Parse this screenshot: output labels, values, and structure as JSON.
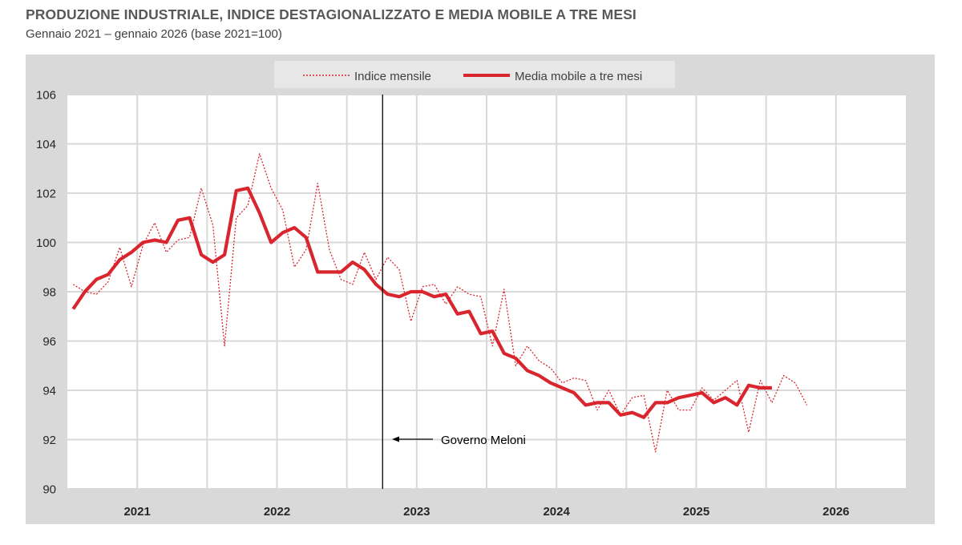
{
  "header": {
    "title": "PRODUZIONE INDUSTRIALE, INDICE DESTAGIONALIZZATO E MEDIA MOBILE A TRE MESI",
    "subtitle": "Gennaio 2021 – gennaio 2026 (base 2021=100)"
  },
  "chart_data": {
    "type": "line",
    "title": "PRODUZIONE INDUSTRIALE, INDICE DESTAGIONALIZZATO E MEDIA MOBILE A TRE MESI",
    "subtitle": "Gennaio 2021 – gennaio 2026 (base 2021=100)",
    "xlabel": "",
    "ylabel": "",
    "ylim": [
      90,
      106
    ],
    "yticks": [
      "90",
      "92",
      "94",
      "96",
      "98",
      "100",
      "102",
      "104",
      "106"
    ],
    "years": [
      "2021",
      "2022",
      "2023",
      "2024",
      "2025",
      "2026"
    ],
    "x_unit": "month index (0 = gennaio 2021)",
    "xlim": [
      0,
      72
    ],
    "grid": true,
    "legend_position": "top",
    "series": [
      {
        "name": "Indice mensile",
        "style": "dotted",
        "color": "#d9262e",
        "values": [
          98.3,
          98.0,
          97.9,
          98.4,
          99.8,
          98.2,
          99.9,
          100.8,
          99.6,
          100.1,
          100.2,
          102.2,
          100.7,
          95.8,
          101.0,
          101.5,
          103.6,
          102.2,
          101.3,
          99.0,
          99.7,
          102.4,
          99.7,
          98.5,
          98.3,
          99.6,
          98.5,
          99.4,
          98.9,
          96.8,
          98.2,
          98.3,
          97.5,
          98.2,
          97.9,
          97.8,
          95.8,
          98.1,
          95.0,
          95.8,
          95.2,
          94.9,
          94.3,
          94.5,
          94.4,
          93.2,
          94.0,
          93.0,
          93.7,
          93.8,
          91.5,
          94.0,
          93.2,
          93.2,
          94.1,
          93.6,
          94.0,
          94.4,
          92.3,
          94.4,
          93.5,
          94.6,
          94.3,
          93.4
        ],
        "label_text": "Indice mensile"
      },
      {
        "name": "Media mobile a tre mesi",
        "style": "solid",
        "color": "#d9262e",
        "values": [
          97.3,
          98.0,
          98.5,
          98.7,
          99.3,
          99.6,
          100.0,
          100.1,
          100.0,
          100.9,
          101.0,
          99.5,
          99.2,
          99.5,
          102.1,
          102.2,
          101.2,
          100.0,
          100.4,
          100.6,
          100.2,
          98.8,
          98.8,
          98.8,
          99.2,
          98.9,
          98.3,
          97.9,
          97.8,
          98.0,
          98.0,
          97.8,
          97.9,
          97.1,
          97.2,
          96.3,
          96.4,
          95.5,
          95.3,
          94.8,
          94.6,
          94.3,
          94.1,
          93.9,
          93.4,
          93.5,
          93.5,
          93.0,
          93.1,
          92.9,
          93.5,
          93.5,
          93.7,
          93.8,
          93.9,
          93.5,
          93.7,
          93.4,
          94.2,
          94.1,
          94.1
        ],
        "label_text": "Media mobile a tre mesi"
      }
    ],
    "annotations": [
      {
        "text": "Governo Meloni",
        "x_month": 27,
        "marker": "vertical-line",
        "arrow": "left"
      }
    ]
  }
}
